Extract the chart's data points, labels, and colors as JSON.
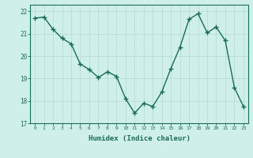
{
  "x": [
    0,
    1,
    2,
    3,
    4,
    5,
    6,
    7,
    8,
    9,
    10,
    11,
    12,
    13,
    14,
    15,
    16,
    17,
    18,
    19,
    20,
    21,
    22,
    23
  ],
  "y": [
    21.7,
    21.75,
    21.2,
    20.8,
    20.55,
    19.65,
    19.4,
    19.05,
    19.3,
    19.1,
    18.1,
    17.45,
    17.9,
    17.75,
    18.4,
    19.45,
    20.4,
    21.65,
    21.9,
    21.05,
    21.3,
    20.7,
    18.6,
    17.75
  ],
  "xlim": [
    -0.5,
    23.5
  ],
  "ylim": [
    17,
    22.3
  ],
  "yticks": [
    17,
    18,
    19,
    20,
    21,
    22
  ],
  "xticks": [
    0,
    1,
    2,
    3,
    4,
    5,
    6,
    7,
    8,
    9,
    10,
    11,
    12,
    13,
    14,
    15,
    16,
    17,
    18,
    19,
    20,
    21,
    22,
    23
  ],
  "xlabel": "Humidex (Indice chaleur)",
  "line_color": "#1a6b5a",
  "marker": "+",
  "marker_size": 4,
  "bg_color": "#cff0ea",
  "grid_color": "#b8ddd7",
  "tick_color": "#1a6b5a",
  "axis_color": "#1a6b5a",
  "label_color": "#1a6b5a",
  "linewidth": 1.0
}
